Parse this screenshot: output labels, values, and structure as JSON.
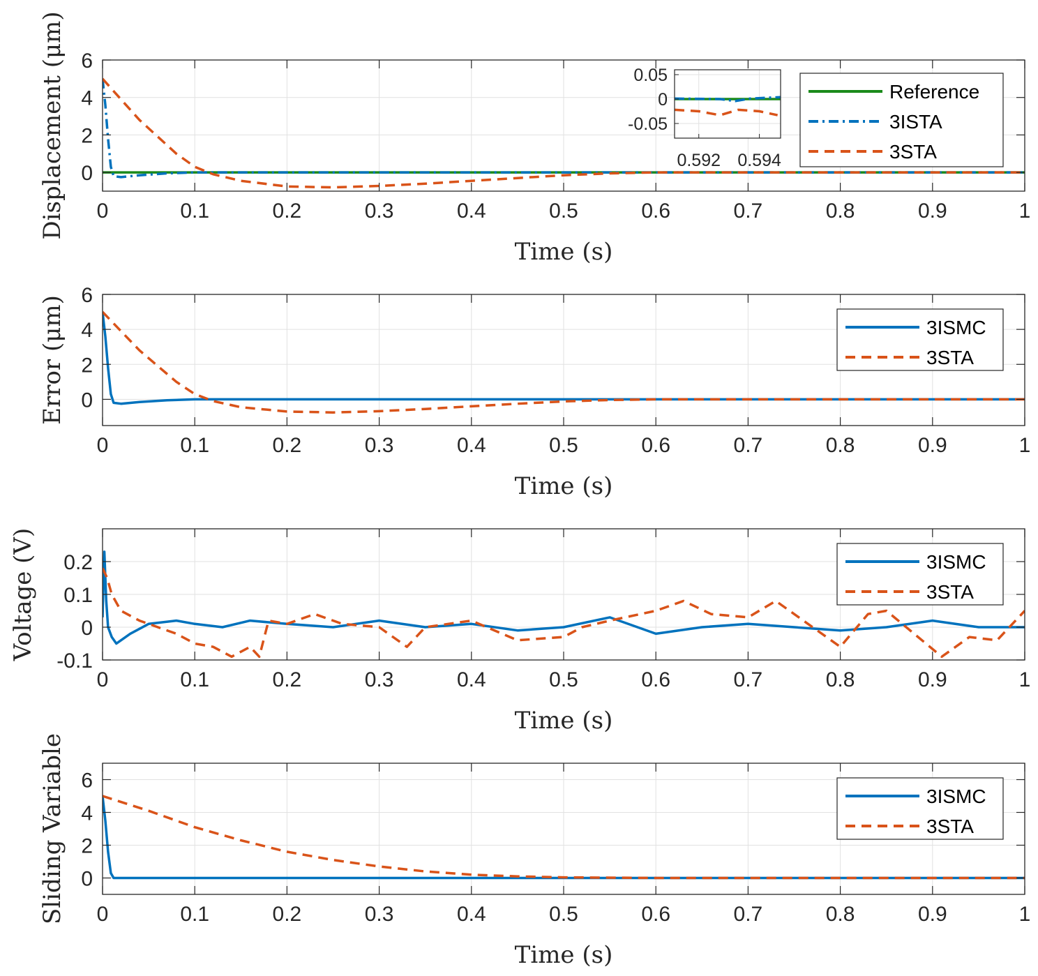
{
  "colors": {
    "green": "#1a8a1a",
    "blue": "#0072bd",
    "orange": "#d95319",
    "grid": "#e1e1e1",
    "axis": "#262626"
  },
  "chart_data": [
    {
      "type": "line",
      "ylabel": "Displacement (μm)",
      "xlabel": "Time (s)",
      "xlim": [
        0,
        1
      ],
      "ylim": [
        -1,
        6
      ],
      "xticks": [
        0,
        0.1,
        0.2,
        0.3,
        0.4,
        0.5,
        0.6,
        0.7,
        0.8,
        0.9,
        1
      ],
      "xtick_labels": [
        "0",
        "0.1",
        "0.2",
        "0.3",
        "0.4",
        "0.5",
        "0.6",
        "0.7",
        "0.8",
        "0.9",
        "1"
      ],
      "yticks": [
        0,
        2,
        4,
        6
      ],
      "ytick_labels": [
        "0",
        "2",
        "4",
        "6"
      ],
      "legend": [
        "Reference",
        "3ISTA",
        "3STA"
      ],
      "series": [
        {
          "name": "Reference",
          "color": "green",
          "style": "solid",
          "x": [
            0,
            1
          ],
          "y": [
            0,
            0
          ]
        },
        {
          "name": "3ISTA",
          "color": "blue",
          "style": "dashdot",
          "x": [
            0,
            0.003,
            0.006,
            0.009,
            0.012,
            0.02,
            0.04,
            0.07,
            0.1,
            1
          ],
          "y": [
            5,
            3.6,
            1.8,
            0.3,
            -0.2,
            -0.25,
            -0.15,
            -0.05,
            0,
            0
          ]
        },
        {
          "name": "3STA",
          "color": "orange",
          "style": "dashed",
          "x": [
            0,
            0.02,
            0.04,
            0.06,
            0.08,
            0.1,
            0.12,
            0.15,
            0.2,
            0.25,
            0.3,
            0.35,
            0.4,
            0.45,
            0.5,
            0.55,
            0.6,
            0.7,
            1
          ],
          "y": [
            5,
            3.9,
            2.8,
            1.9,
            1.0,
            0.3,
            -0.1,
            -0.45,
            -0.75,
            -0.8,
            -0.72,
            -0.6,
            -0.45,
            -0.3,
            -0.15,
            -0.05,
            0,
            0,
            0
          ]
        }
      ],
      "inset": {
        "xlim": [
          0.5912,
          0.5947
        ],
        "ylim": [
          -0.08,
          0.06
        ],
        "xticks": [
          0.592,
          0.594
        ],
        "xtick_labels": [
          "0.592",
          "0.594"
        ],
        "yticks": [
          -0.05,
          0,
          0.05
        ],
        "ytick_labels": [
          "-0.05",
          "0",
          "0.05"
        ]
      }
    },
    {
      "type": "line",
      "ylabel": "Error (μm)",
      "xlabel": "Time (s)",
      "xlim": [
        0,
        1
      ],
      "ylim": [
        -1.5,
        6
      ],
      "xticks": [
        0,
        0.1,
        0.2,
        0.3,
        0.4,
        0.5,
        0.6,
        0.7,
        0.8,
        0.9,
        1
      ],
      "xtick_labels": [
        "0",
        "0.1",
        "0.2",
        "0.3",
        "0.4",
        "0.5",
        "0.6",
        "0.7",
        "0.8",
        "0.9",
        "1"
      ],
      "yticks": [
        0,
        2,
        4,
        6
      ],
      "ytick_labels": [
        "0",
        "2",
        "4",
        "6"
      ],
      "legend": [
        "3ISMC",
        "3STA"
      ],
      "series": [
        {
          "name": "3ISMC",
          "color": "blue",
          "style": "solid",
          "x": [
            0,
            0.003,
            0.006,
            0.009,
            0.012,
            0.02,
            0.04,
            0.07,
            0.1,
            1
          ],
          "y": [
            5,
            3.6,
            1.8,
            0.3,
            -0.2,
            -0.25,
            -0.15,
            -0.05,
            0,
            0
          ]
        },
        {
          "name": "3STA",
          "color": "orange",
          "style": "dashed",
          "x": [
            0,
            0.02,
            0.04,
            0.06,
            0.08,
            0.1,
            0.12,
            0.15,
            0.2,
            0.25,
            0.3,
            0.35,
            0.4,
            0.45,
            0.5,
            0.55,
            0.6,
            0.7,
            1
          ],
          "y": [
            5,
            3.9,
            2.8,
            1.9,
            1.0,
            0.3,
            -0.1,
            -0.45,
            -0.7,
            -0.75,
            -0.68,
            -0.55,
            -0.4,
            -0.25,
            -0.12,
            -0.04,
            0,
            0,
            0
          ]
        }
      ]
    },
    {
      "type": "line",
      "ylabel": "Voltage (V)",
      "xlabel": "Time (s)",
      "xlim": [
        0,
        1
      ],
      "ylim": [
        -0.1,
        0.3
      ],
      "xticks": [
        0,
        0.1,
        0.2,
        0.3,
        0.4,
        0.5,
        0.6,
        0.7,
        0.8,
        0.9,
        1
      ],
      "xtick_labels": [
        "0",
        "0.1",
        "0.2",
        "0.3",
        "0.4",
        "0.5",
        "0.6",
        "0.7",
        "0.8",
        "0.9",
        "1"
      ],
      "yticks": [
        -0.1,
        0,
        0.1,
        0.2
      ],
      "ytick_labels": [
        "-0.1",
        "0",
        "0.1",
        "0.2"
      ],
      "legend": [
        "3ISMC",
        "3STA"
      ],
      "series": [
        {
          "name": "3ISMC",
          "color": "blue",
          "style": "solid",
          "x": [
            0,
            0.002,
            0.004,
            0.006,
            0.01,
            0.015,
            0.02,
            0.03,
            0.05,
            0.08,
            0.1,
            0.13,
            0.16,
            0.2,
            0.25,
            0.3,
            0.35,
            0.4,
            0.45,
            0.5,
            0.55,
            0.6,
            0.65,
            0.7,
            0.75,
            0.8,
            0.85,
            0.9,
            0.95,
            1
          ],
          "y": [
            0.03,
            0.23,
            0.08,
            0.0,
            -0.03,
            -0.05,
            -0.04,
            -0.02,
            0.01,
            0.02,
            0.01,
            0.0,
            0.02,
            0.01,
            0.0,
            0.02,
            0.0,
            0.01,
            -0.01,
            0.0,
            0.03,
            -0.02,
            0.0,
            0.01,
            0.0,
            -0.01,
            0.0,
            0.02,
            0.0,
            0.0
          ]
        },
        {
          "name": "3STA",
          "color": "orange",
          "style": "dashed",
          "x": [
            0,
            0.005,
            0.01,
            0.02,
            0.04,
            0.06,
            0.08,
            0.1,
            0.12,
            0.14,
            0.16,
            0.17,
            0.18,
            0.2,
            0.23,
            0.26,
            0.3,
            0.33,
            0.35,
            0.4,
            0.45,
            0.5,
            0.52,
            0.55,
            0.6,
            0.63,
            0.66,
            0.7,
            0.73,
            0.76,
            0.8,
            0.83,
            0.85,
            0.88,
            0.91,
            0.94,
            0.97,
            1
          ],
          "y": [
            0.18,
            0.15,
            0.1,
            0.05,
            0.02,
            0.0,
            -0.02,
            -0.05,
            -0.06,
            -0.09,
            -0.06,
            -0.09,
            0.02,
            0.01,
            0.04,
            0.01,
            0.0,
            -0.06,
            0.0,
            0.02,
            -0.04,
            -0.03,
            0.0,
            0.02,
            0.05,
            0.08,
            0.04,
            0.03,
            0.08,
            0.02,
            -0.06,
            0.04,
            0.05,
            -0.02,
            -0.09,
            -0.03,
            -0.04,
            0.05
          ]
        }
      ]
    },
    {
      "type": "line",
      "ylabel": "Sliding Variable",
      "xlabel": "Time (s)",
      "xlim": [
        0,
        1
      ],
      "ylim": [
        -1,
        7
      ],
      "xticks": [
        0,
        0.1,
        0.2,
        0.3,
        0.4,
        0.5,
        0.6,
        0.7,
        0.8,
        0.9,
        1
      ],
      "xtick_labels": [
        "0",
        "0.1",
        "0.2",
        "0.3",
        "0.4",
        "0.5",
        "0.6",
        "0.7",
        "0.8",
        "0.9",
        "1"
      ],
      "yticks": [
        0,
        2,
        4,
        6
      ],
      "ytick_labels": [
        "0",
        "2",
        "4",
        "6"
      ],
      "legend": [
        "3ISMC",
        "3STA"
      ],
      "series": [
        {
          "name": "3ISMC",
          "color": "blue",
          "style": "solid",
          "x": [
            0,
            0.003,
            0.006,
            0.009,
            0.012,
            1
          ],
          "y": [
            5,
            3.5,
            1.6,
            0.3,
            0,
            0
          ]
        },
        {
          "name": "3STA",
          "color": "orange",
          "style": "dashed",
          "x": [
            0,
            0.05,
            0.1,
            0.15,
            0.2,
            0.25,
            0.3,
            0.35,
            0.4,
            0.45,
            0.5,
            0.6,
            1
          ],
          "y": [
            5,
            4.1,
            3.1,
            2.3,
            1.6,
            1.1,
            0.7,
            0.4,
            0.2,
            0.1,
            0.04,
            0,
            0
          ]
        }
      ]
    }
  ]
}
